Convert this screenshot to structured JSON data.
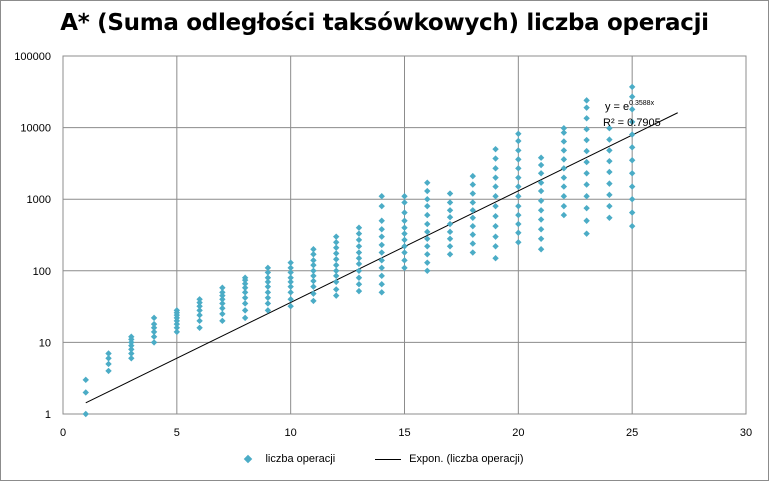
{
  "chart_data": {
    "type": "scatter",
    "title": "A* (Suma odległości taksówkowych) liczba operacji",
    "xlim": [
      0,
      30
    ],
    "ylim": [
      1,
      100000
    ],
    "yscale": "log",
    "x_ticks": [
      "0",
      "5",
      "10",
      "15",
      "20",
      "25",
      "30"
    ],
    "y_ticks": [
      "1",
      "10",
      "100",
      "1000",
      "10000",
      "100000"
    ],
    "grid": true,
    "legend_position": "bottom",
    "series": [
      {
        "name": "liczba operacji",
        "color": "#4bacc6",
        "marker": "diamond",
        "points_by_x": [
          {
            "x": 1,
            "values": [
              1,
              2,
              3
            ]
          },
          {
            "x": 2,
            "values": [
              4,
              5,
              6,
              7
            ]
          },
          {
            "x": 3,
            "values": [
              6,
              7,
              8,
              9,
              10,
              11,
              12
            ]
          },
          {
            "x": 4,
            "values": [
              10,
              12,
              14,
              16,
              18,
              22
            ]
          },
          {
            "x": 5,
            "values": [
              14,
              16,
              18,
              20,
              22,
              24,
              26,
              28
            ]
          },
          {
            "x": 6,
            "values": [
              16,
              20,
              24,
              28,
              32,
              36,
              40
            ]
          },
          {
            "x": 7,
            "values": [
              20,
              25,
              30,
              35,
              40,
              45,
              50,
              58
            ]
          },
          {
            "x": 8,
            "values": [
              22,
              28,
              35,
              42,
              50,
              58,
              66,
              74,
              80
            ]
          },
          {
            "x": 9,
            "values": [
              28,
              35,
              42,
              50,
              60,
              70,
              80,
              95,
              110
            ]
          },
          {
            "x": 10,
            "values": [
              32,
              40,
              50,
              60,
              70,
              80,
              95,
              110,
              130
            ]
          },
          {
            "x": 11,
            "values": [
              38,
              48,
              60,
              72,
              85,
              100,
              120,
              140,
              170,
              200
            ]
          },
          {
            "x": 12,
            "values": [
              45,
              55,
              70,
              85,
              100,
              120,
              145,
              175,
              210,
              250,
              300
            ]
          },
          {
            "x": 13,
            "values": [
              52,
              65,
              80,
              100,
              125,
              150,
              180,
              220,
              270,
              330,
              400
            ]
          },
          {
            "x": 14,
            "values": [
              50,
              65,
              85,
              110,
              140,
              180,
              230,
              300,
              380,
              500,
              800,
              1100
            ]
          },
          {
            "x": 15,
            "values": [
              110,
              140,
              180,
              220,
              270,
              330,
              400,
              500,
              650,
              900,
              1100
            ]
          },
          {
            "x": 16,
            "values": [
              100,
              130,
              170,
              220,
              280,
              350,
              450,
              600,
              800,
              1000,
              1300,
              1700
            ]
          },
          {
            "x": 17,
            "values": [
              170,
              220,
              280,
              350,
              450,
              560,
              700,
              900,
              1200
            ]
          },
          {
            "x": 18,
            "values": [
              180,
              240,
              320,
              420,
              550,
              700,
              900,
              1200,
              1600,
              2100
            ]
          },
          {
            "x": 19,
            "values": [
              150,
              220,
              300,
              420,
              580,
              800,
              1100,
              1500,
              2000,
              2700,
              3700,
              5000
            ]
          },
          {
            "x": 20,
            "values": [
              250,
              340,
              450,
              600,
              800,
              1100,
              1500,
              2000,
              2700,
              3600,
              4800,
              6500,
              8200
            ]
          },
          {
            "x": 21,
            "values": [
              200,
              280,
              380,
              520,
              700,
              950,
              1300,
              1700,
              2300,
              3000,
              3800
            ]
          },
          {
            "x": 22,
            "values": [
              600,
              800,
              1100,
              1500,
              2000,
              2700,
              3600,
              4800,
              6400,
              8500,
              9800
            ]
          },
          {
            "x": 23,
            "values": [
              330,
              500,
              750,
              1100,
              1600,
              2300,
              3300,
              4700,
              6700,
              9500,
              13500,
              19000,
              24000
            ]
          },
          {
            "x": 24,
            "values": [
              550,
              800,
              1150,
              1650,
              2400,
              3400,
              4800,
              6800,
              9800
            ]
          },
          {
            "x": 25,
            "values": [
              420,
              650,
              1000,
              1500,
              2300,
              3500,
              5300,
              8000,
              12000,
              18000,
              27000,
              37000
            ]
          }
        ]
      },
      {
        "name": "Expon. (liczba operacji)",
        "type": "trendline",
        "color": "#000000",
        "coefficient": 1,
        "exponent": 0.3588,
        "x_range": [
          1,
          27
        ]
      }
    ],
    "annotation": {
      "equation_base": "y = e",
      "equation_exp": "0.3588x",
      "r2_label": "R² = 0.7905"
    }
  }
}
